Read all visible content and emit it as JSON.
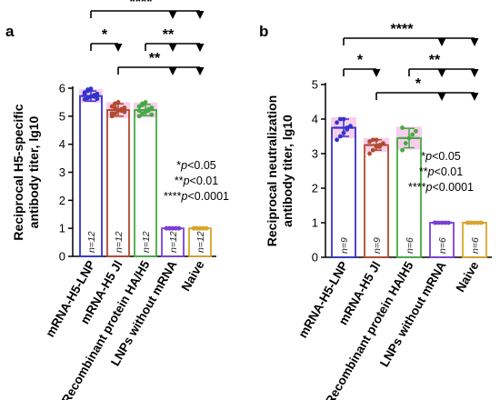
{
  "chart_data": [
    {
      "panel": "a",
      "type": "bar",
      "ylabel": [
        "Reciprocal H5-specific",
        "antibody titer, lg10"
      ],
      "ylim": [
        0,
        6
      ],
      "yticks": [
        0,
        1,
        2,
        3,
        4,
        5,
        6
      ],
      "categories": [
        "mRNA-H5-LNP",
        "mRNA-H5 Jl",
        "Recombinant protein HA/H5",
        "LNPs without mRNA",
        "Naive"
      ],
      "values": [
        5.72,
        5.22,
        5.22,
        1.0,
        1.0
      ],
      "errors": [
        0.18,
        0.22,
        0.2,
        0.0,
        0.0
      ],
      "n_labels": [
        "n=12",
        "n=12",
        "n=12",
        "n=12",
        "n=12"
      ],
      "points": [
        [
          5.6,
          5.65,
          5.7,
          5.75,
          5.8,
          5.85,
          5.95,
          5.98,
          5.7,
          5.62,
          5.78,
          5.9
        ],
        [
          5.0,
          5.1,
          5.2,
          5.25,
          5.3,
          5.35,
          5.45,
          5.5,
          5.2,
          5.15,
          5.1,
          5.3
        ],
        [
          5.0,
          5.1,
          5.15,
          5.2,
          5.3,
          5.35,
          5.45,
          5.5,
          5.25,
          5.05,
          5.2,
          5.4
        ],
        [
          1,
          1,
          1,
          1,
          1,
          1,
          1,
          1,
          1,
          1,
          1,
          1
        ],
        [
          1,
          1,
          1,
          1,
          1,
          1,
          1,
          1,
          1,
          1,
          1,
          1
        ]
      ],
      "significance": [
        {
          "label": "****",
          "from": 0,
          "to": [
            3,
            4
          ],
          "tier": 0
        },
        {
          "label": "*",
          "from": 0,
          "to": [
            1
          ],
          "tier": 2
        },
        {
          "label": "**",
          "from": 2,
          "to": [
            3,
            4
          ],
          "tier": 2
        },
        {
          "label": "**",
          "from": 1,
          "to": [
            3,
            4
          ],
          "tier": 3
        }
      ],
      "legend": [
        {
          "stars": "*",
          "p": "p",
          "threshold": "<0.05"
        },
        {
          "stars": "**",
          "p": "p",
          "threshold": "<0.01"
        },
        {
          "stars": "****",
          "p": "p",
          "threshold": "<0.0001"
        }
      ]
    },
    {
      "panel": "b",
      "type": "bar",
      "ylabel": [
        "Reciprocal neutralization",
        "antibody titer, lg10"
      ],
      "ylim": [
        0,
        5
      ],
      "yticks": [
        0,
        1,
        2,
        3,
        4,
        5
      ],
      "categories": [
        "mRNA-H5-LNP",
        "mRNA-H5 Jl",
        "Recombinant protein HA/H5",
        "LNPs without mRNA",
        "Naive"
      ],
      "values": [
        3.75,
        3.25,
        3.45,
        1.0,
        1.0
      ],
      "errors": [
        0.25,
        0.15,
        0.28,
        0.0,
        0.0
      ],
      "n_labels": [
        "n=9",
        "n=9",
        "n=6",
        "n=6",
        "n=6"
      ],
      "points": [
        [
          3.4,
          3.5,
          3.6,
          3.75,
          3.8,
          3.9,
          4.0,
          4.0,
          3.7
        ],
        [
          3.0,
          3.1,
          3.2,
          3.2,
          3.3,
          3.35,
          3.4,
          3.4,
          3.25
        ],
        [
          3.1,
          3.3,
          3.45,
          3.55,
          3.65,
          3.75
        ],
        [
          1,
          1,
          1,
          1,
          1,
          1
        ],
        [
          1,
          1,
          1,
          1,
          1,
          1
        ]
      ],
      "significance": [
        {
          "label": "****",
          "from": 0,
          "to": [
            3,
            4
          ],
          "tier": 0
        },
        {
          "label": "*",
          "from": 0,
          "to": [
            1
          ],
          "tier": 2
        },
        {
          "label": "**",
          "from": 2,
          "to": [
            3,
            4
          ],
          "tier": 2
        },
        {
          "label": "*",
          "from": 1,
          "to": [
            3,
            4
          ],
          "tier": 3
        }
      ],
      "legend": [
        {
          "stars": "*",
          "p": "p",
          "threshold": "<0.05"
        },
        {
          "stars": "**",
          "p": "p",
          "threshold": "<0.01"
        },
        {
          "stars": "****",
          "p": "p",
          "threshold": "<0.0001"
        }
      ]
    }
  ],
  "colors": {
    "mRNA-H5-LNP": "#3333cc",
    "mRNA-H5 Jl": "#b04a2e",
    "Recombinant protein HA/H5": "#44aa44",
    "LNPs without mRNA": "#7a3fd6",
    "Naive": "#d8a52b",
    "error_bar_glow": "#f2a6dd",
    "text": "#000000"
  }
}
